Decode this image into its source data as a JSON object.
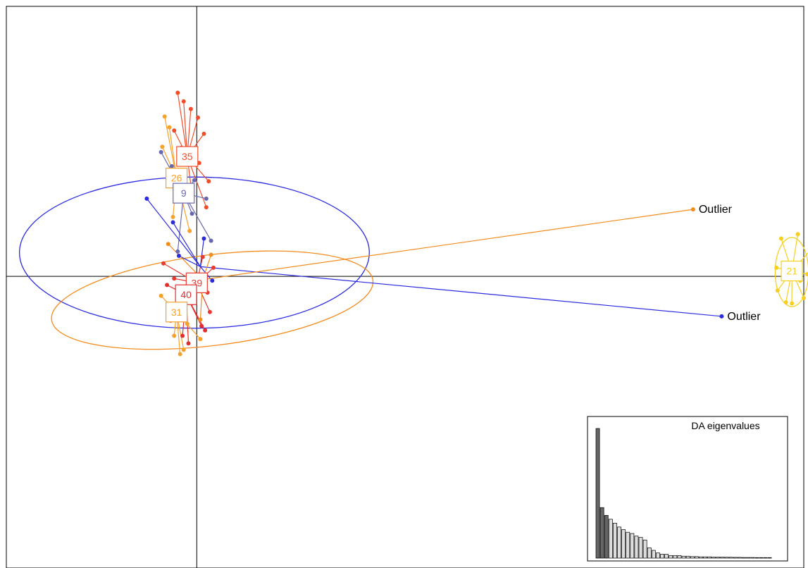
{
  "chart_data": [
    {
      "type": "scatter",
      "description_free": true,
      "xlim": [
        -1.6,
        5.1
      ],
      "ylim": [
        -2.7,
        2.5
      ],
      "axes_lines_at": [
        0,
        0
      ],
      "clusters": [
        {
          "label": "35",
          "color": "#f04e2a",
          "centroid": [
            -0.08,
            1.11
          ],
          "points": [
            [
              -0.16,
              1.7
            ],
            [
              -0.11,
              1.62
            ],
            [
              -0.05,
              1.55
            ],
            [
              0.01,
              1.47
            ],
            [
              -0.19,
              1.35
            ],
            [
              0.06,
              1.32
            ],
            [
              -0.13,
              1.19
            ],
            [
              0.02,
              1.05
            ],
            [
              0.1,
              0.88
            ],
            [
              -0.04,
              0.76
            ],
            [
              0.08,
              0.64
            ]
          ]
        },
        {
          "label": "26",
          "color": "#f5a12a",
          "centroid": [
            -0.17,
            0.91
          ],
          "points": [
            [
              -0.27,
              1.48
            ],
            [
              -0.23,
              1.38
            ],
            [
              -0.29,
              1.2
            ],
            [
              -0.12,
              0.98
            ],
            [
              -0.1,
              0.74
            ],
            [
              -0.2,
              0.55
            ],
            [
              -0.06,
              0.42
            ]
          ]
        },
        {
          "label": "9",
          "color": "#6868b0",
          "centroid": [
            -0.11,
            0.77
          ],
          "points": [
            [
              -0.3,
              1.15
            ],
            [
              -0.21,
              1.02
            ],
            [
              -0.02,
              0.89
            ],
            [
              0.08,
              0.72
            ],
            [
              -0.04,
              0.58
            ],
            [
              0.12,
              0.33
            ],
            [
              -0.16,
              0.23
            ]
          ]
        },
        {
          "label": "39",
          "color": "#e83a30",
          "centroid": [
            0.0,
            -0.06
          ],
          "points": [
            [
              -0.28,
              0.12
            ],
            [
              0.05,
              0.18
            ],
            [
              0.14,
              0.08
            ],
            [
              -0.19,
              -0.02
            ],
            [
              0.09,
              -0.15
            ],
            [
              -0.04,
              -0.25
            ],
            [
              0.11,
              -0.33
            ],
            [
              -0.22,
              -0.41
            ]
          ]
        },
        {
          "label": "40",
          "color": "#e52d2d",
          "centroid": [
            -0.09,
            -0.17
          ],
          "points": [
            [
              -0.25,
              -0.08
            ],
            [
              -0.02,
              -0.22
            ],
            [
              -0.17,
              -0.35
            ],
            [
              0.04,
              -0.46
            ],
            [
              -0.12,
              -0.55
            ],
            [
              -0.07,
              -0.62
            ],
            [
              0.07,
              -0.5
            ]
          ]
        },
        {
          "label": "31",
          "color": "#f5a12a",
          "centroid": [
            -0.17,
            -0.33
          ],
          "points": [
            [
              -0.3,
              -0.18
            ],
            [
              -0.21,
              -0.3
            ],
            [
              -0.08,
              -0.44
            ],
            [
              -0.19,
              -0.55
            ],
            [
              0.03,
              -0.58
            ],
            [
              -0.11,
              -0.68
            ],
            [
              -0.14,
              -0.72
            ]
          ]
        },
        {
          "label": "",
          "color": "#2b2be0",
          "centroid": [
            0.03,
            0.09
          ],
          "points": [
            [
              -0.42,
              0.72
            ],
            [
              -0.2,
              0.5
            ],
            [
              0.06,
              0.35
            ],
            [
              -0.15,
              0.19
            ],
            [
              0.13,
              -0.04
            ],
            [
              4.41,
              -0.37
            ]
          ],
          "ellipse": {
            "cx": -0.02,
            "cy": 0.22,
            "rx": 1.47,
            "ry": 0.7,
            "angle": 0
          }
        },
        {
          "label": "",
          "color": "#f28c1e",
          "centroid": [
            0.05,
            -0.03
          ],
          "points": [
            [
              -0.24,
              0.3
            ],
            [
              -0.1,
              -0.12
            ],
            [
              0.12,
              0.2
            ],
            [
              0.03,
              -0.4
            ],
            [
              4.17,
              0.62
            ]
          ],
          "ellipse": {
            "cx": 0.13,
            "cy": -0.22,
            "rx": 1.36,
            "ry": 0.42,
            "angle": -7
          }
        },
        {
          "label": "21",
          "color": "#f5d020",
          "centroid": [
            5.0,
            0.05
          ],
          "points": [
            [
              4.91,
              0.35
            ],
            [
              5.05,
              0.39
            ],
            [
              5.27,
              0.38
            ],
            [
              4.87,
              0.08
            ],
            [
              4.88,
              -0.13
            ],
            [
              4.95,
              -0.24
            ],
            [
              5.1,
              -0.2
            ],
            [
              5.03,
              0.12
            ],
            [
              5.07,
              -0.04
            ],
            [
              5.13,
              0.02
            ],
            [
              5.0,
              -0.25
            ]
          ],
          "ellipse": {
            "cx": 5.0,
            "cy": 0.04,
            "rx": 0.14,
            "ry": 0.32,
            "angle": 0
          }
        }
      ],
      "annotations": [
        {
          "text": "Outlier",
          "x": 4.17,
          "y": 0.62
        },
        {
          "text": "Outlier",
          "x": 4.41,
          "y": -0.37
        }
      ]
    },
    {
      "type": "bar",
      "title": "DA eigenvalues",
      "values": [
        1.0,
        0.39,
        0.33,
        0.3,
        0.27,
        0.24,
        0.22,
        0.2,
        0.19,
        0.17,
        0.16,
        0.14,
        0.08,
        0.06,
        0.04,
        0.03,
        0.03,
        0.02,
        0.02,
        0.02,
        0.015,
        0.015,
        0.012,
        0.012,
        0.01,
        0.01,
        0.01,
        0.008,
        0.008,
        0.008,
        0.007,
        0.007,
        0.006,
        0.006,
        0.005,
        0.005,
        0.005,
        0.004,
        0.004,
        0.004,
        0.004
      ],
      "retained_count": 3,
      "retained_color": "#666666",
      "other_color": "#dddddd"
    }
  ]
}
